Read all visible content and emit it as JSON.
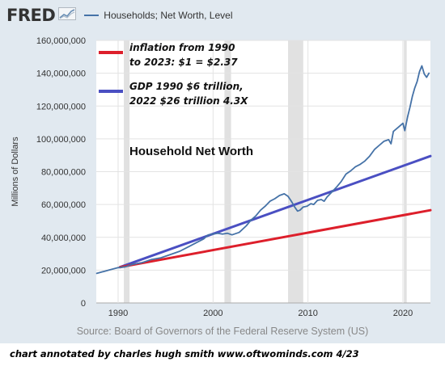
{
  "header": {
    "logo_text": "FRED",
    "series_title": "Households; Net Worth, Level",
    "series_color": "#4572a7"
  },
  "annotations": {
    "inflation_lines": [
      "inflation from 1990",
      "to 2023: $1 = $2.37"
    ],
    "gdp_lines": [
      "GDP 1990 $6 trillion,",
      "2022 $26 trillion 4.3X"
    ],
    "center_label": "Household Net Worth",
    "inflation_color": "#dd1f2b",
    "gdp_color": "#4a4fc2"
  },
  "source": "Source: Board of Governors of the Federal Reserve System (US)",
  "credit": "chart annotated by charles hugh smith   www.oftwominds.com  4/23",
  "chart_data": {
    "type": "line",
    "ylabel": "Millions of Dollars",
    "xlim": [
      1987.7,
      2022.9
    ],
    "ylim": [
      0,
      160000000
    ],
    "yticks": [
      0,
      20000000,
      40000000,
      60000000,
      80000000,
      100000000,
      120000000,
      140000000,
      160000000
    ],
    "ytick_labels": [
      "0",
      "20,000,000",
      "40,000,000",
      "60,000,000",
      "80,000,000",
      "100,000,000",
      "120,000,000",
      "140,000,000",
      "160,000,000"
    ],
    "xticks": [
      1990,
      2000,
      2010,
      2020
    ],
    "xtick_labels": [
      "1990",
      "2000",
      "2010",
      "2020"
    ],
    "recessions": [
      [
        1990.6,
        1991.2
      ],
      [
        2001.2,
        2001.9
      ],
      [
        2007.9,
        2009.5
      ],
      [
        2020.1,
        2020.4
      ]
    ],
    "grid": true,
    "series": [
      {
        "name": "Households; Net Worth, Level",
        "color": "#4572a7",
        "x": [
          1987.75,
          1989.0,
          1990.0,
          1990.75,
          1991.5,
          1992.5,
          1993.5,
          1994.5,
          1995.5,
          1996.5,
          1997.5,
          1998.5,
          1999.0,
          1999.5,
          2000.0,
          2000.5,
          2001.0,
          2001.5,
          2002.0,
          2002.75,
          2003.5,
          2004.0,
          2004.5,
          2005.0,
          2005.5,
          2006.0,
          2006.5,
          2007.0,
          2007.5,
          2007.9,
          2008.25,
          2008.6,
          2008.9,
          2009.15,
          2009.5,
          2009.9,
          2010.3,
          2010.6,
          2011.0,
          2011.4,
          2011.7,
          2012.0,
          2012.5,
          2013.0,
          2013.5,
          2014.0,
          2014.5,
          2015.0,
          2015.5,
          2016.0,
          2016.5,
          2017.0,
          2017.5,
          2018.0,
          2018.5,
          2018.75,
          2019.0,
          2019.5,
          2020.0,
          2020.2,
          2020.5,
          2020.75,
          2021.0,
          2021.25,
          2021.5,
          2021.75,
          2022.0,
          2022.25,
          2022.5,
          2022.75
        ],
        "y": [
          18000000,
          20000000,
          21500000,
          22000000,
          23500000,
          24500000,
          26500000,
          27500000,
          29500000,
          31500000,
          34500000,
          37500000,
          39000000,
          41500000,
          42000000,
          42500000,
          42000000,
          42500000,
          41500000,
          43000000,
          47000000,
          50500000,
          53000000,
          56500000,
          59000000,
          62000000,
          63500000,
          65500000,
          66500000,
          65000000,
          62000000,
          58500000,
          56000000,
          56500000,
          58500000,
          59000000,
          60500000,
          60000000,
          62500000,
          63000000,
          62000000,
          64500000,
          67500000,
          70500000,
          74000000,
          78500000,
          80500000,
          83000000,
          84500000,
          86500000,
          89500000,
          93500000,
          96000000,
          98500000,
          99500000,
          97000000,
          104500000,
          107000000,
          109500000,
          105000000,
          113500000,
          119500000,
          126000000,
          131000000,
          135000000,
          141000000,
          144500000,
          139500000,
          137500000,
          140000000
        ]
      },
      {
        "name": "GDP 1990 $6 trillion, 2022 $26 trillion 4.3X",
        "color": "#4a4fc2",
        "x": [
          1990.2,
          2022.9
        ],
        "y": [
          21800000,
          89500000
        ]
      },
      {
        "name": "inflation from 1990 to 2023: $1 = $2.37",
        "color": "#dd1f2b",
        "x": [
          1990.2,
          2022.9
        ],
        "y": [
          21800000,
          56500000
        ]
      }
    ]
  }
}
